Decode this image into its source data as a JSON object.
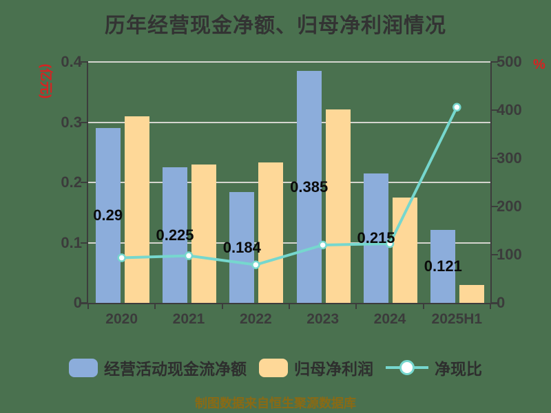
{
  "footer": "制图数据来自恒生聚源数据库",
  "colors": {
    "background": "#4A714F",
    "bar_cashflow": "#8CADDB",
    "bar_profit": "#FED898",
    "line_ratio": "#76D7CE",
    "axis_unit_red": "#D92121",
    "title_text": "#333333",
    "tick_text": "#3B3B3B",
    "gridline": "#D5D5CF",
    "spine": "#3C3C3C",
    "bar_label_text": "#0B0B0B",
    "legend_text": "#2E2E2E",
    "footer_text": "#8A6A14",
    "marker_fill": "#FFFFFF"
  },
  "chart_data": {
    "type": "bar+line combo",
    "title": "历年经营现金净额、归母净利润情况",
    "categories": [
      "2020",
      "2021",
      "2022",
      "2023",
      "2024",
      "2025H1"
    ],
    "series": [
      {
        "name": "经营活动现金流净额",
        "type": "bar",
        "axis": "left",
        "color": "#8CADDB",
        "values": [
          0.29,
          0.225,
          0.184,
          0.385,
          0.215,
          0.121
        ],
        "value_labels": [
          "0.29",
          "0.225",
          "0.184",
          "0.385",
          "0.215",
          "0.121"
        ]
      },
      {
        "name": "归母净利润",
        "type": "bar",
        "axis": "left",
        "color": "#FED898",
        "values": [
          0.31,
          0.23,
          0.233,
          0.321,
          0.175,
          0.03
        ],
        "estimated": true
      },
      {
        "name": "净现比",
        "type": "line",
        "axis": "right",
        "color": "#76D7CE",
        "values": [
          93.5,
          97.8,
          79.0,
          120.0,
          122.9,
          406.0
        ],
        "estimated": true
      }
    ],
    "left_axis": {
      "label": "(亿元)",
      "min": 0,
      "max": 0.4,
      "ticks": [
        "0",
        "0.1",
        "0.2",
        "0.3",
        "0.4"
      ]
    },
    "right_axis": {
      "label": "%",
      "min": 0,
      "max": 500,
      "ticks": [
        "0",
        "100",
        "200",
        "300",
        "400",
        "500"
      ]
    },
    "grid": true,
    "legend_position": "bottom"
  }
}
